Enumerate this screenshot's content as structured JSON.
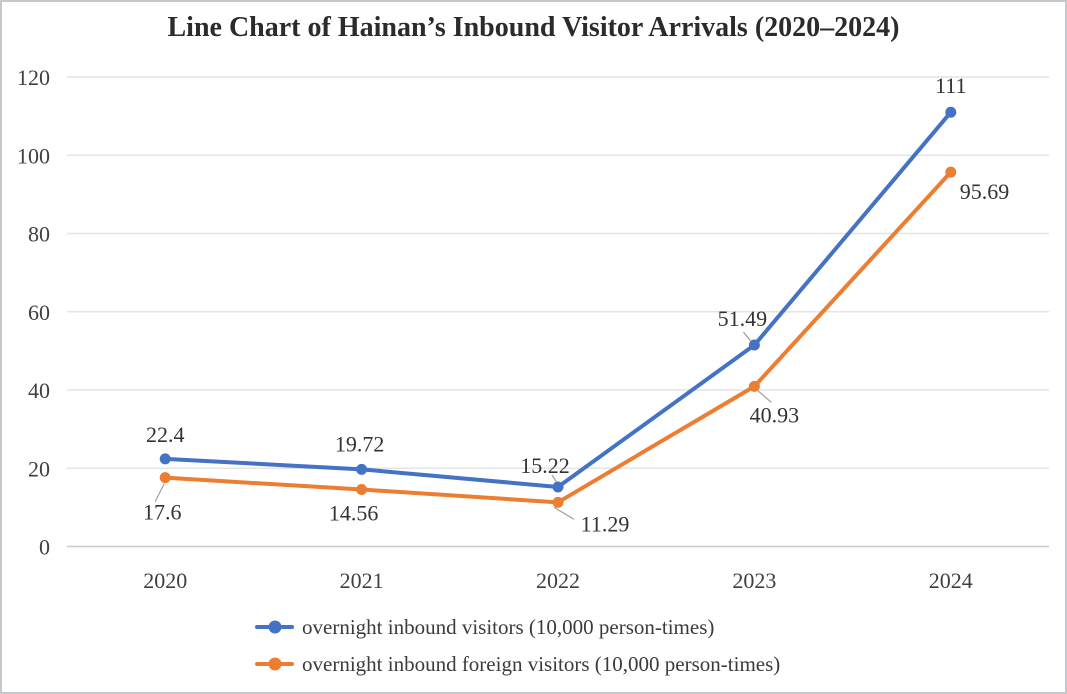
{
  "chart_data": {
    "type": "line",
    "title": "Line Chart of Hainan’s Inbound Visitor Arrivals (2020–2024)",
    "categories": [
      "2020",
      "2021",
      "2022",
      "2023",
      "2024"
    ],
    "series": [
      {
        "name": "overnight inbound visitors (10,000 person-times)",
        "color": "#4472C4",
        "values": [
          22.4,
          19.72,
          15.22,
          51.49,
          111
        ],
        "point_labels": [
          "22.4",
          "19.72",
          "15.22",
          "51.49",
          "111"
        ]
      },
      {
        "name": "overnight inbound foreign visitors (10,000 person-times)",
        "color": "#ED7D31",
        "values": [
          17.6,
          14.56,
          11.29,
          40.93,
          95.69
        ],
        "point_labels": [
          "17.6",
          "14.56",
          "11.29",
          "40.93",
          "95.69"
        ]
      }
    ],
    "y_axis": {
      "min": 0,
      "max": 120,
      "step": 20,
      "tick_labels": [
        "0",
        "20",
        "40",
        "60",
        "80",
        "100",
        "120"
      ]
    },
    "x_axis": {
      "tick_labels": [
        "2020",
        "2021",
        "2022",
        "2023",
        "2024"
      ]
    },
    "grid": true,
    "legend_position": "bottom"
  },
  "colors": {
    "gridline": "#e2e4e8",
    "axis_line": "#c7cbd0",
    "tick_text": "#3f3f3f",
    "label_text": "#333333",
    "leader_line": "#a6a6a6",
    "border": "#c6c9cc",
    "background": "#ffffff"
  }
}
